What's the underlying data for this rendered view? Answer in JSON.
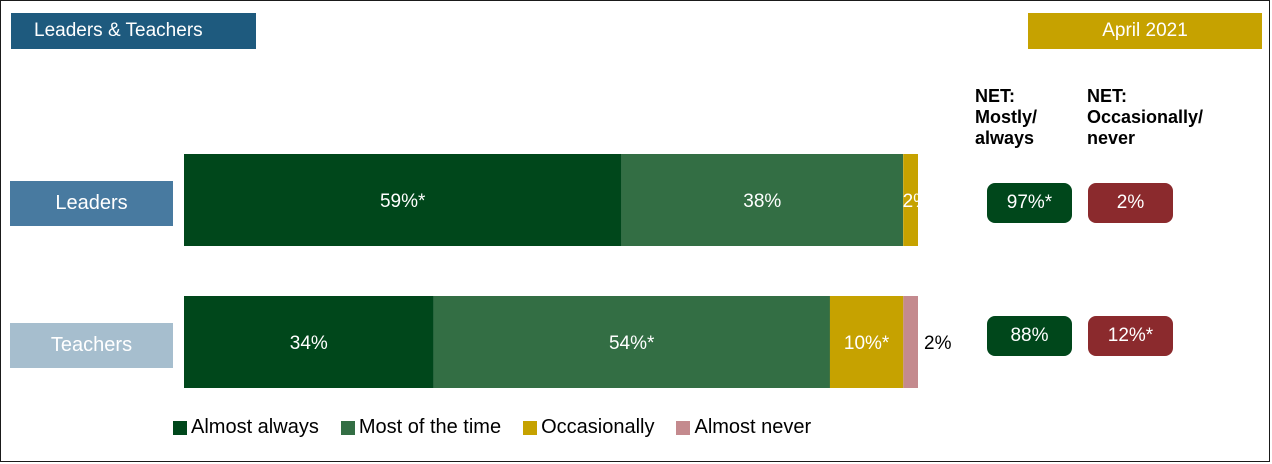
{
  "header": {
    "group_label": "Leaders & Teachers",
    "date_label": "April 2021"
  },
  "chart_data": {
    "type": "bar",
    "orientation": "horizontal",
    "stacked": true,
    "categories": [
      "Leaders",
      "Teachers"
    ],
    "series": [
      {
        "name": "Almost always",
        "color": "#00471b",
        "values": [
          59,
          34
        ],
        "labels": [
          "59%*",
          "34%"
        ]
      },
      {
        "name": "Most of the time",
        "color": "#336e44",
        "values": [
          38,
          54
        ],
        "labels": [
          "38%",
          "54%*"
        ]
      },
      {
        "name": "Occasionally",
        "color": "#c6a200",
        "values": [
          2,
          10
        ],
        "labels": [
          "2%",
          "10%*"
        ]
      },
      {
        "name": "Almost never",
        "color": "#c48a8e",
        "values": [
          0,
          2
        ],
        "labels": [
          "",
          "2%"
        ]
      }
    ],
    "xlim": [
      0,
      100
    ],
    "legend_position": "bottom",
    "grid": false
  },
  "net": {
    "headers": [
      "NET:\nMostly/\nalways",
      "NET:\nOccasionally/\nnever"
    ],
    "rows": [
      [
        "97%*",
        "2%"
      ],
      [
        "88%",
        "12%*"
      ]
    ]
  }
}
